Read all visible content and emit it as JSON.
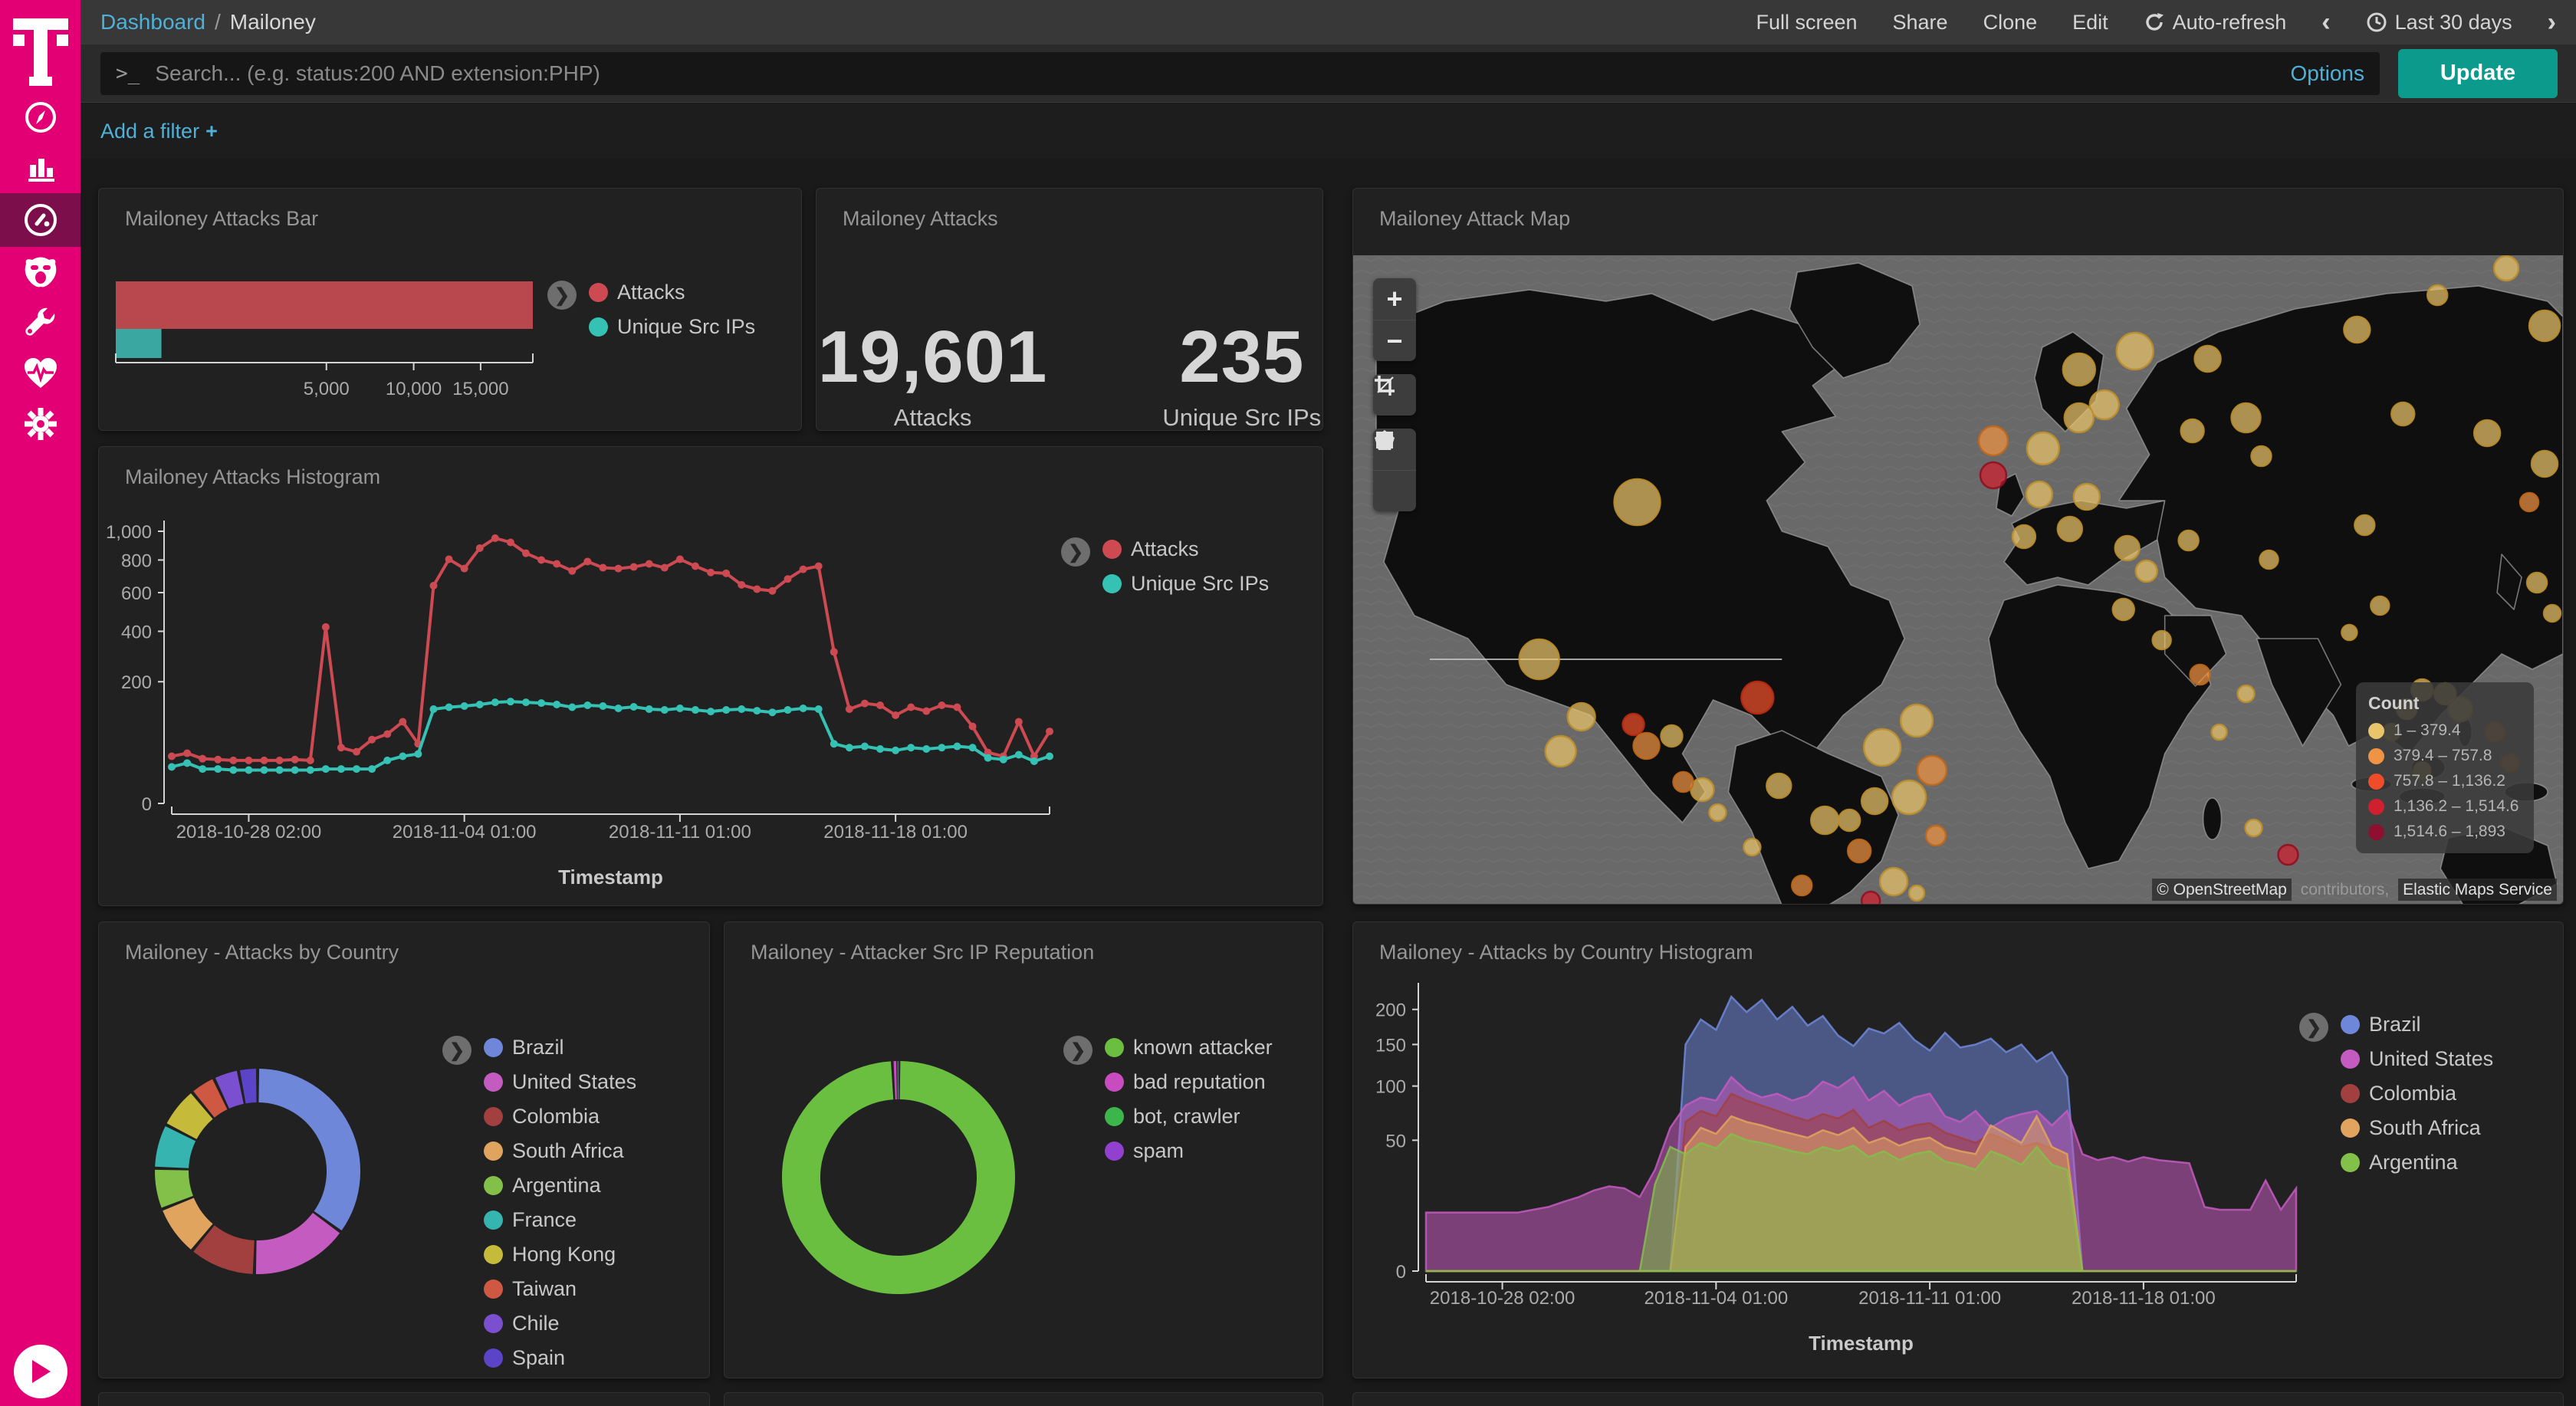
{
  "sidebar": {
    "brand_letter": "T",
    "items": [
      {
        "name": "discover",
        "icon": "compass-icon"
      },
      {
        "name": "visualize",
        "icon": "bar-chart-icon"
      },
      {
        "name": "dashboard",
        "icon": "gauge-icon",
        "active": true
      },
      {
        "name": "timelion",
        "icon": "monster-icon"
      },
      {
        "name": "dev-tools",
        "icon": "wrench-icon"
      },
      {
        "name": "monitoring",
        "icon": "heartbeat-icon"
      },
      {
        "name": "management",
        "icon": "gear-icon"
      }
    ],
    "expand_icon": "play-icon"
  },
  "header": {
    "breadcrumb": {
      "section": "Dashboard",
      "separator": "/",
      "current": "Mailoney"
    },
    "menu": [
      {
        "label": "Full screen"
      },
      {
        "label": "Share"
      },
      {
        "label": "Clone"
      },
      {
        "label": "Edit"
      },
      {
        "label": "Auto-refresh",
        "icon": "refresh-icon"
      }
    ],
    "time_picker": {
      "prev": "‹",
      "icon": "clock-icon",
      "label": "Last 30 days",
      "next": "›"
    }
  },
  "search": {
    "prompt": ">_",
    "placeholder": "Search... (e.g. status:200 AND extension:PHP)",
    "options_label": "Options",
    "update_label": "Update"
  },
  "filter_bar": {
    "add_filter_label": "Add a filter",
    "plus": "+"
  },
  "chart_data": [
    {
      "id": "attacks_bar",
      "type": "bar",
      "title": "Mailoney Attacks Bar",
      "orientation": "horizontal",
      "scale": "sqrt",
      "categories": [
        "Attacks",
        "Unique Src IPs"
      ],
      "values": [
        19601,
        235
      ],
      "bar_colors": [
        "#b8474e",
        "#3aa8a0"
      ],
      "xmax": 19601,
      "x_ticks": [
        5000,
        10000,
        15000
      ],
      "x_tick_labels": [
        "5,000",
        "10,000",
        "15,000"
      ],
      "legend": [
        {
          "label": "Attacks",
          "color": "#ce4a52"
        },
        {
          "label": "Unique Src IPs",
          "color": "#35c2b5"
        }
      ]
    },
    {
      "id": "attacks_metric",
      "type": "metric",
      "title": "Mailoney Attacks",
      "metrics": [
        {
          "value": "19,601",
          "label": "Attacks"
        },
        {
          "value": "235",
          "label": "Unique Src IPs"
        }
      ]
    },
    {
      "id": "attack_map",
      "type": "map",
      "title": "Mailoney Attack Map",
      "legend_title": "Count",
      "legend": [
        {
          "label": "1 – 379.4",
          "color": "#e9c46a",
          "stroke": "#bb8f2d"
        },
        {
          "label": "379.4 – 757.8",
          "color": "#ef9344",
          "stroke": "#c06818"
        },
        {
          "label": "757.8 – 1,136.2",
          "color": "#ef4d2a",
          "stroke": "#b92a12"
        },
        {
          "label": "1,136.2 – 1,514.6",
          "color": "#d01f2f",
          "stroke": "#8f1020"
        },
        {
          "label": "1,514.6 – 1,893",
          "color": "#8e1030",
          "stroke": "#5e0a20"
        }
      ],
      "attribution": [
        {
          "text": "© OpenStreetMap",
          "muted": false
        },
        {
          "text": " contributors, ",
          "muted": true
        },
        {
          "text": "Elastic Maps Service",
          "muted": false
        }
      ],
      "controls": [
        "zoom-in",
        "zoom-out",
        "crop",
        "draw-polygon",
        "draw-rectangle"
      ],
      "bubbles": [
        [
          371,
          322,
          30,
          1
        ],
        [
          243,
          527,
          26,
          1
        ],
        [
          298,
          602,
          18,
          1
        ],
        [
          416,
          627,
          14,
          1
        ],
        [
          528,
          577,
          21,
          3
        ],
        [
          271,
          647,
          20,
          1
        ],
        [
          366,
          612,
          14,
          3
        ],
        [
          383,
          640,
          17,
          2
        ],
        [
          456,
          697,
          15,
          1
        ],
        [
          691,
          642,
          24,
          1
        ],
        [
          736,
          607,
          21,
          1
        ],
        [
          756,
          672,
          19,
          2
        ],
        [
          726,
          707,
          22,
          1
        ],
        [
          681,
          712,
          17,
          1
        ],
        [
          648,
          737,
          14,
          1
        ],
        [
          431,
          687,
          13,
          2
        ],
        [
          476,
          727,
          11,
          1
        ],
        [
          556,
          692,
          16,
          1
        ],
        [
          616,
          737,
          18,
          1
        ],
        [
          661,
          777,
          15,
          2
        ],
        [
          706,
          817,
          18,
          1
        ],
        [
          586,
          822,
          13,
          2
        ],
        [
          761,
          757,
          13,
          2
        ],
        [
          521,
          772,
          11,
          1
        ],
        [
          676,
          842,
          12,
          4
        ],
        [
          736,
          832,
          10,
          1
        ],
        [
          948,
          149,
          21,
          1
        ],
        [
          1021,
          125,
          24,
          1
        ],
        [
          1116,
          135,
          17,
          1
        ],
        [
          981,
          195,
          19,
          1
        ],
        [
          836,
          242,
          19,
          2
        ],
        [
          836,
          287,
          17,
          4
        ],
        [
          901,
          252,
          21,
          1
        ],
        [
          948,
          212,
          19,
          1
        ],
        [
          896,
          312,
          17,
          1
        ],
        [
          876,
          367,
          15,
          1
        ],
        [
          936,
          357,
          16,
          1
        ],
        [
          958,
          315,
          17,
          1
        ],
        [
          1166,
          212,
          19,
          1
        ],
        [
          1096,
          229,
          15,
          1
        ],
        [
          1186,
          262,
          13,
          1
        ],
        [
          1011,
          382,
          16,
          1
        ],
        [
          1036,
          412,
          14,
          1
        ],
        [
          1091,
          372,
          13,
          1
        ],
        [
          1196,
          397,
          12,
          1
        ],
        [
          1006,
          462,
          14,
          1
        ],
        [
          1056,
          502,
          12,
          1
        ],
        [
          1106,
          547,
          13,
          2
        ],
        [
          1166,
          572,
          11,
          1
        ],
        [
          1221,
          782,
          13,
          4
        ],
        [
          1176,
          747,
          11,
          1
        ],
        [
          1131,
          622,
          10,
          1
        ],
        [
          1311,
          97,
          17,
          1
        ],
        [
          1416,
          52,
          13,
          1
        ],
        [
          1506,
          17,
          16,
          1
        ],
        [
          1556,
          92,
          20,
          1
        ],
        [
          1371,
          207,
          15,
          1
        ],
        [
          1481,
          232,
          17,
          1
        ],
        [
          1556,
          272,
          17,
          1
        ],
        [
          1536,
          322,
          12,
          2
        ],
        [
          1321,
          352,
          13,
          1
        ],
        [
          1341,
          457,
          12,
          1
        ],
        [
          1301,
          492,
          10,
          1
        ],
        [
          1396,
          567,
          14,
          1
        ],
        [
          1446,
          592,
          16,
          1
        ],
        [
          1491,
          622,
          13,
          2
        ],
        [
          1566,
          467,
          11,
          1
        ],
        [
          1546,
          427,
          13,
          1
        ],
        [
          1511,
          662,
          12,
          2
        ],
        [
          1396,
          672,
          11,
          1
        ],
        [
          1356,
          622,
          11,
          1
        ],
        [
          1376,
          592,
          13,
          1
        ],
        [
          1426,
          572,
          14,
          1
        ]
      ]
    },
    {
      "id": "attacks_histogram",
      "type": "line",
      "title": "Mailoney Attacks Histogram",
      "scale": "sqrt",
      "xlabel": "Timestamp",
      "ylim": [
        0,
        1000
      ],
      "y_ticks": [
        0,
        200,
        400,
        600,
        800,
        1000
      ],
      "y_tick_labels": [
        "0",
        "200",
        "400",
        "600",
        "800",
        "1,000"
      ],
      "n_points": 58,
      "x_tick_indices": [
        5,
        19,
        33,
        47
      ],
      "x_tick_labels": [
        "2018-10-28 02:00",
        "2018-11-04 01:00",
        "2018-11-11 01:00",
        "2018-11-18 01:00"
      ],
      "series": [
        {
          "name": "Attacks",
          "color": "#ce4a52",
          "values": [
            30,
            34,
            27,
            26,
            25,
            25,
            25,
            25,
            26,
            25,
            420,
            42,
            36,
            55,
            65,
            90,
            48,
            640,
            805,
            745,
            880,
            950,
            920,
            845,
            800,
            775,
            730,
            790,
            750,
            745,
            755,
            775,
            750,
            805,
            760,
            720,
            715,
            645,
            620,
            610,
            680,
            740,
            760,
            310,
            120,
            135,
            130,
            105,
            125,
            115,
            130,
            125,
            80,
            35,
            30,
            90,
            30,
            70
          ]
        },
        {
          "name": "Unique Src IPs",
          "color": "#35c2b5",
          "values": [
            18,
            22,
            16,
            16,
            15,
            15,
            15,
            15,
            15,
            15,
            16,
            16,
            16,
            16,
            25,
            30,
            33,
            120,
            125,
            128,
            132,
            138,
            140,
            138,
            136,
            132,
            125,
            130,
            128,
            122,
            126,
            120,
            118,
            122,
            118,
            114,
            118,
            120,
            116,
            112,
            118,
            122,
            120,
            48,
            42,
            44,
            40,
            38,
            42,
            40,
            42,
            44,
            42,
            28,
            26,
            32,
            24,
            30
          ]
        }
      ]
    },
    {
      "id": "country_donut",
      "type": "pie",
      "title": "Mailoney - Attacks by Country",
      "donut": true,
      "categories": [
        "Brazil",
        "United States",
        "Colombia",
        "South Africa",
        "Argentina",
        "France",
        "Hong Kong",
        "Taiwan",
        "Chile",
        "Spain"
      ],
      "values": [
        35,
        15.5,
        10.5,
        8,
        6.5,
        7,
        6.5,
        4,
        4,
        3
      ],
      "colors": [
        "#6f87d8",
        "#c45bc0",
        "#a23f3f",
        "#e0a45e",
        "#82c04a",
        "#36b5b0",
        "#c6ba3a",
        "#cf5843",
        "#7a4fd0",
        "#5b44c8"
      ]
    },
    {
      "id": "reputation_donut",
      "type": "pie",
      "title": "Mailoney - Attacker Src IP Reputation",
      "donut": true,
      "categories": [
        "known attacker",
        "bad reputation",
        "bot, crawler",
        "spam"
      ],
      "values": [
        99.2,
        0.6,
        0.15,
        0.05
      ],
      "colors": [
        "#6abf40",
        "#c84bc0",
        "#3cb54a",
        "#9140d0"
      ]
    },
    {
      "id": "country_histogram",
      "type": "area",
      "title": "Mailoney - Attacks by Country Histogram",
      "scale": "sqrt",
      "xlabel": "Timestamp",
      "ylim": [
        0,
        225
      ],
      "y_ticks": [
        0,
        50,
        100,
        150,
        200
      ],
      "y_tick_labels": [
        "0",
        "50",
        "100",
        "150",
        "200"
      ],
      "n_points": 58,
      "x_tick_indices": [
        5,
        19,
        33,
        47
      ],
      "x_tick_labels": [
        "2018-10-28 02:00",
        "2018-11-04 01:00",
        "2018-11-11 01:00",
        "2018-11-18 01:00"
      ],
      "series": [
        {
          "name": "Brazil",
          "color": "#6f87d8",
          "values": [
            0,
            0,
            0,
            0,
            0,
            0,
            0,
            0,
            0,
            0,
            0,
            0,
            0,
            0,
            0,
            0,
            0,
            150,
            185,
            170,
            220,
            196,
            215,
            185,
            204,
            176,
            190,
            162,
            148,
            172,
            165,
            180,
            156,
            142,
            166,
            146,
            150,
            158,
            140,
            150,
            128,
            140,
            110,
            0,
            0,
            0,
            0,
            0,
            0,
            0,
            0,
            0,
            0,
            0,
            0,
            0,
            0,
            0
          ]
        },
        {
          "name": "United States",
          "color": "#c45bc0",
          "values": [
            10,
            10,
            10,
            10,
            10,
            10,
            10,
            11,
            12,
            14,
            16,
            19,
            21,
            20,
            16,
            30,
            60,
            80,
            88,
            85,
            110,
            95,
            88,
            92,
            85,
            90,
            105,
            98,
            110,
            85,
            95,
            80,
            88,
            92,
            70,
            65,
            75,
            60,
            68,
            72,
            75,
            62,
            75,
            40,
            36,
            38,
            35,
            38,
            36,
            35,
            34,
            12,
            11,
            11,
            11,
            24,
            11,
            20
          ]
        },
        {
          "name": "Colombia",
          "color": "#a23f3f",
          "values": [
            0,
            0,
            0,
            0,
            0,
            0,
            0,
            0,
            0,
            0,
            0,
            0,
            0,
            0,
            0,
            0,
            0,
            65,
            75,
            70,
            92,
            85,
            80,
            75,
            70,
            66,
            72,
            68,
            76,
            60,
            66,
            58,
            62,
            64,
            56,
            52,
            48,
            55,
            50,
            45,
            48,
            44,
            40,
            0,
            0,
            0,
            0,
            0,
            0,
            0,
            0,
            0,
            0,
            0,
            0,
            0,
            0,
            0
          ]
        },
        {
          "name": "South Africa",
          "color": "#e0a45e",
          "values": [
            0,
            0,
            0,
            0,
            0,
            0,
            0,
            0,
            0,
            0,
            0,
            0,
            0,
            0,
            0,
            0,
            0,
            45,
            60,
            55,
            70,
            65,
            62,
            58,
            55,
            52,
            58,
            54,
            60,
            48,
            52,
            46,
            50,
            52,
            45,
            42,
            40,
            62,
            55,
            48,
            70,
            45,
            40,
            0,
            0,
            0,
            0,
            0,
            0,
            0,
            0,
            0,
            0,
            0,
            0,
            0,
            0,
            0
          ]
        },
        {
          "name": "Argentina",
          "color": "#82c04a",
          "values": [
            0,
            0,
            0,
            0,
            0,
            0,
            0,
            0,
            0,
            0,
            0,
            0,
            0,
            0,
            0,
            22,
            45,
            40,
            48,
            44,
            55,
            50,
            48,
            45,
            42,
            40,
            45,
            42,
            46,
            38,
            42,
            36,
            40,
            42,
            35,
            33,
            30,
            42,
            38,
            33,
            45,
            33,
            30,
            0,
            0,
            0,
            0,
            0,
            0,
            0,
            0,
            0,
            0,
            0,
            0,
            0,
            0,
            0
          ]
        }
      ]
    }
  ]
}
